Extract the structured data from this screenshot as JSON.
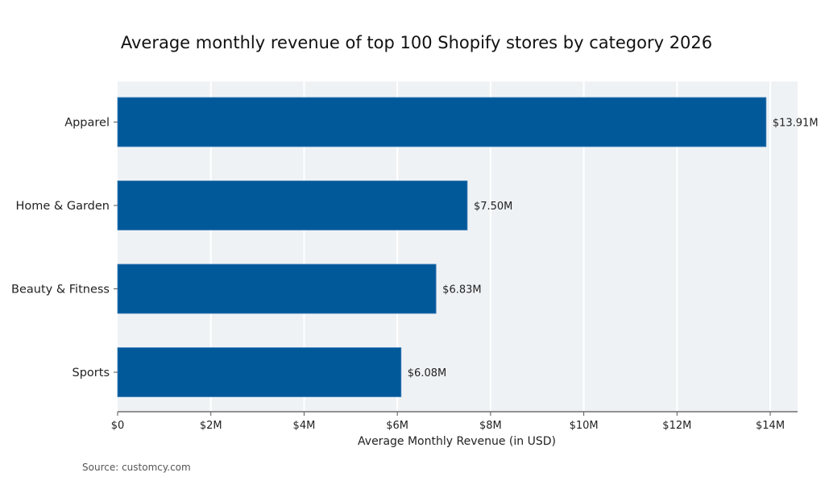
{
  "chart_data": {
    "type": "bar",
    "orientation": "horizontal",
    "title": "Average monthly revenue of top 100 Shopify stores by category 2026",
    "categories": [
      "Apparel",
      "Home & Garden",
      "Beauty & Fitness",
      "Sports"
    ],
    "values": [
      13.91,
      7.5,
      6.83,
      6.08
    ],
    "value_unit": "million USD",
    "data_labels": [
      "$13.91M",
      "$7.50M",
      "$6.83M",
      "$6.08M"
    ],
    "xlabel": "Average Monthly Revenue (in USD)",
    "ylabel": "",
    "xlim": [
      0,
      14.6
    ],
    "x_ticks": [
      0,
      2,
      4,
      6,
      8,
      10,
      12,
      14
    ],
    "x_tick_labels": [
      "$0",
      "$2M",
      "$4M",
      "$6M",
      "$8M",
      "$10M",
      "$12M",
      "$14M"
    ],
    "grid": "vertical",
    "legend": "none",
    "colors": {
      "bar": "#02599a",
      "plot_background": "#eff2f5",
      "grid": "#ffffff"
    },
    "source": "Source: customcy.com"
  }
}
